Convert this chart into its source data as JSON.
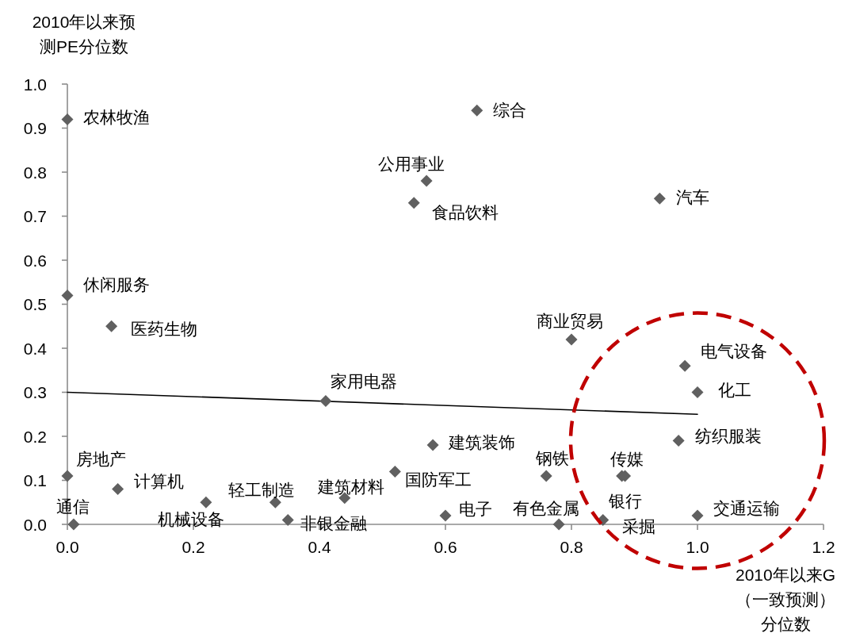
{
  "chart_data": {
    "type": "scatter",
    "xlabel": "2010年以来G（一致预测）分位数",
    "ylabel": "2010年以来预测PE分位数",
    "xlim": [
      0,
      1.2
    ],
    "ylim": [
      0,
      1.0
    ],
    "xticks": [
      {
        "value": 0,
        "label": "0.0"
      },
      0.2,
      0.4,
      0.6,
      0.8,
      {
        "value": 1,
        "label": "1.0"
      },
      1.2
    ],
    "yticks": [
      {
        "value": 0,
        "label": "0.0"
      },
      0.1,
      0.2,
      0.3,
      0.4,
      0.5,
      0.6,
      0.7,
      0.8,
      0.9,
      {
        "value": 1,
        "label": "1.0"
      }
    ],
    "grid": false,
    "marker": "diamond",
    "series": [
      {
        "type": "scatter",
        "color": "#606060",
        "x": [
          0.0,
          0.65,
          0.57,
          0.55,
          0.94,
          0.0,
          0.07,
          0.8,
          0.98,
          1.0,
          0.41,
          0.97,
          0.58,
          0.52,
          0.76,
          0.88,
          0.885,
          0.85,
          0.0,
          0.08,
          0.22,
          0.33,
          0.35,
          0.44,
          0.6,
          0.78,
          1.0,
          0.01
        ],
        "values": [
          0.92,
          0.94,
          0.78,
          0.73,
          0.74,
          0.52,
          0.45,
          0.42,
          0.36,
          0.3,
          0.28,
          0.19,
          0.18,
          0.12,
          0.11,
          0.11,
          0.11,
          0.01,
          0.11,
          0.08,
          0.05,
          0.05,
          0.01,
          0.06,
          0.02,
          0.0,
          0.02,
          0.0
        ]
      },
      {
        "type": "line",
        "color": "#000000",
        "marker": "none",
        "x": [
          0,
          1
        ],
        "values": [
          0.3,
          0.25
        ]
      }
    ],
    "annotations": [
      {
        "text": "农林牧渔",
        "x": 0.0,
        "y": 0.92
      },
      {
        "text": "综合",
        "x": 0.65,
        "y": 0.94
      },
      {
        "text": "公用事业",
        "x": 0.57,
        "y": 0.78
      },
      {
        "text": "食品饮料",
        "x": 0.55,
        "y": 0.73
      },
      {
        "text": "汽车",
        "x": 0.94,
        "y": 0.74
      },
      {
        "text": "休闲服务",
        "x": 0.0,
        "y": 0.52
      },
      {
        "text": "医药生物",
        "x": 0.07,
        "y": 0.45
      },
      {
        "text": "商业贸易",
        "x": 0.8,
        "y": 0.42
      },
      {
        "text": "电气设备",
        "x": 0.98,
        "y": 0.36
      },
      {
        "text": "化工",
        "x": 1.0,
        "y": 0.3
      },
      {
        "text": "家用电器",
        "x": 0.41,
        "y": 0.28
      },
      {
        "text": "纺织服装",
        "x": 0.97,
        "y": 0.19
      },
      {
        "text": "建筑装饰",
        "x": 0.58,
        "y": 0.18
      },
      {
        "text": "国防军工",
        "x": 0.52,
        "y": 0.12
      },
      {
        "text": "钢铁",
        "x": 0.76,
        "y": 0.11
      },
      {
        "text": "传媒",
        "x": 0.88,
        "y": 0.11
      },
      {
        "text": "采掘",
        "x": 0.885,
        "y": 0.11
      },
      {
        "text": "银行",
        "x": 0.85,
        "y": 0.01
      },
      {
        "text": "房地产",
        "x": 0.0,
        "y": 0.11
      },
      {
        "text": "计算机",
        "x": 0.08,
        "y": 0.08
      },
      {
        "text": "机械设备",
        "x": 0.22,
        "y": 0.05
      },
      {
        "text": "轻工制造",
        "x": 0.33,
        "y": 0.05
      },
      {
        "text": "非银金融",
        "x": 0.35,
        "y": 0.01
      },
      {
        "text": "建筑材料",
        "x": 0.44,
        "y": 0.06
      },
      {
        "text": "电子",
        "x": 0.6,
        "y": 0.02
      },
      {
        "text": "有色金属",
        "x": 0.78,
        "y": 0.0
      },
      {
        "text": "交通运输",
        "x": 1.0,
        "y": 0.02
      },
      {
        "text": "通信",
        "x": 0.01,
        "y": 0.0
      }
    ]
  }
}
